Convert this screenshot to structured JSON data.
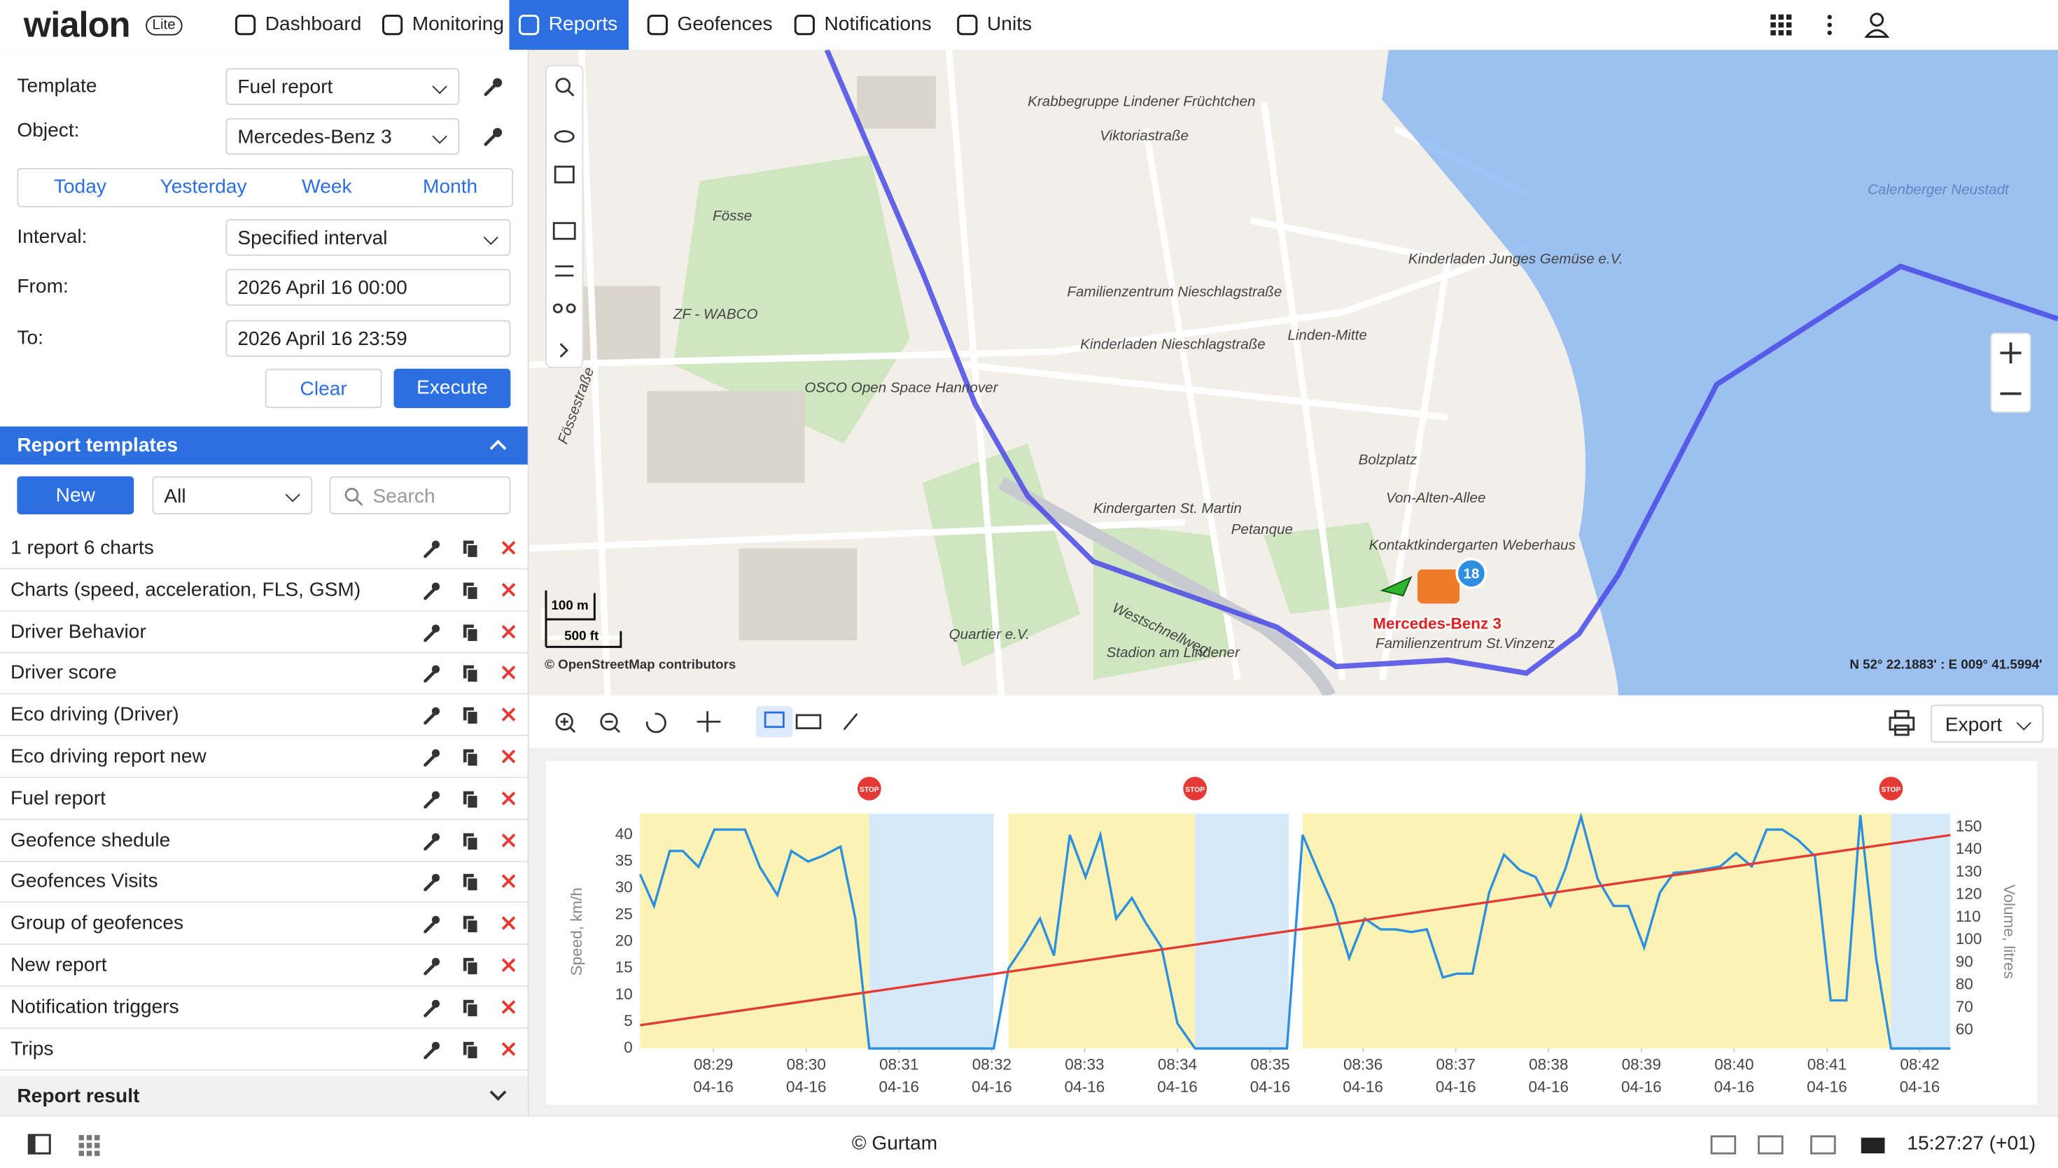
{
  "header": {
    "logo": "wialon",
    "logo_badge": "Lite",
    "nav": [
      "Dashboard",
      "Monitoring",
      "Reports",
      "Geofences",
      "Notifications",
      "Units"
    ],
    "active_nav": 2
  },
  "report_form": {
    "template_label": "Template",
    "template_value": "Fuel report",
    "object_label": "Object:",
    "object_value": "Mercedes-Benz 3",
    "periods": [
      "Today",
      "Yesterday",
      "Week",
      "Month"
    ],
    "interval_label": "Interval:",
    "interval_value": "Specified interval",
    "from_label": "From:",
    "from_value": "2026 April 16 00:00",
    "to_label": "To:",
    "to_value": "2026 April 16 23:59",
    "clear": "Clear",
    "execute": "Execute"
  },
  "templates": {
    "title": "Report templates",
    "new": "New",
    "filter": "All",
    "search_placeholder": "Search",
    "items": [
      "1 report 6 charts",
      "Charts (speed, acceleration, FLS, GSM)",
      "Driver Behavior",
      "Driver score",
      "Eco driving (Driver)",
      "Eco driving report new",
      "Fuel report",
      "Geofence shedule",
      "Geofences Visits",
      "Group of geofences",
      "New report",
      "Notification triggers",
      "Trips"
    ]
  },
  "report_result": "Report result",
  "map": {
    "labels": [
      "Krabbegruppe Lindener Früchtchen",
      "Viktoriastraße",
      "Familienzentrum Nieschlagstraße",
      "Kinderladen Nieschlagstraße",
      "Linden-Mitte",
      "Kinderladen Junges Gemüse e.V.",
      "ZF - WABCO",
      "OSCO Open Space Hannover",
      "Kindergarten St. Martin",
      "Petanque",
      "Bolzplatz",
      "Kontaktkindergarten Weberhaus",
      "Westschnellweg",
      "Quartier e.V.",
      "Stadion am Lindener",
      "Familienzentrum St.Vinzenz",
      "Fössestraße",
      "Fösse",
      "Calenberger Neustadt",
      "Von-Alten-Allee"
    ],
    "scale_m": "100 m",
    "scale_ft": "500 ft",
    "attribution": "© OpenStreetMap contributors",
    "coordinates": "N 52° 22.1883' : E 009° 41.5994'",
    "unit_name": "Mercedes-Benz 3",
    "unit_badge": "18"
  },
  "chart_toolbar": {
    "export": "Export"
  },
  "chart_data": {
    "type": "line",
    "ylabel": "Speed, km/h",
    "y2label": "Volume, litres",
    "xlim": [
      28.2,
      42.33
    ],
    "ylim": [
      0,
      44
    ],
    "y2lim": [
      52,
      156
    ],
    "xticks": [
      {
        "value": 29,
        "label": "08:29",
        "date": "04-16"
      },
      {
        "value": 30,
        "label": "08:30",
        "date": "04-16"
      },
      {
        "value": 31,
        "label": "08:31",
        "date": "04-16"
      },
      {
        "value": 32,
        "label": "08:32",
        "date": "04-16"
      },
      {
        "value": 33,
        "label": "08:33",
        "date": "04-16"
      },
      {
        "value": 34,
        "label": "08:34",
        "date": "04-16"
      },
      {
        "value": 35,
        "label": "08:35",
        "date": "04-16"
      },
      {
        "value": 36,
        "label": "08:36",
        "date": "04-16"
      },
      {
        "value": 37,
        "label": "08:37",
        "date": "04-16"
      },
      {
        "value": 38,
        "label": "08:38",
        "date": "04-16"
      },
      {
        "value": 39,
        "label": "08:39",
        "date": "04-16"
      },
      {
        "value": 40,
        "label": "08:40",
        "date": "04-16"
      },
      {
        "value": 41,
        "label": "08:41",
        "date": "04-16"
      },
      {
        "value": 42,
        "label": "08:42",
        "date": "04-16"
      }
    ],
    "yticks": [
      0,
      5,
      10,
      15,
      20,
      25,
      30,
      35,
      40
    ],
    "y2ticks": [
      60,
      70,
      80,
      90,
      100,
      110,
      120,
      130,
      140,
      150
    ],
    "intervals": [
      {
        "color": "#faf3b4",
        "x": [
          28.21,
          30.68
        ]
      },
      {
        "color": "#d6e9fa",
        "x": [
          30.68,
          32.02
        ]
      },
      {
        "color": "#faf3b4",
        "x": [
          32.18,
          34.19
        ]
      },
      {
        "color": "#d6e9fa",
        "x": [
          34.19,
          35.2
        ]
      },
      {
        "color": "#faf3b4",
        "x": [
          35.35,
          41.69
        ]
      },
      {
        "color": "#d6e9fa",
        "x": [
          41.69,
          42.33
        ]
      }
    ],
    "stop_markers": {
      "label": "STOP",
      "x": [
        30.68,
        34.19,
        41.69
      ]
    },
    "series": [
      {
        "color": "#2d8fe0",
        "x": [
          28.21,
          28.36,
          28.53,
          28.67,
          28.84,
          29.01,
          29.17,
          29.34,
          29.5,
          29.69,
          29.84,
          30.02,
          30.17,
          30.37,
          30.53,
          30.68,
          32.02,
          32.18,
          32.35,
          32.52,
          32.67,
          32.84,
          33.01,
          33.17,
          33.34,
          33.51,
          33.65,
          33.83,
          34.0,
          34.19,
          35.18,
          35.35,
          35.53,
          35.68,
          35.85,
          36.02,
          36.19,
          36.35,
          36.52,
          36.69,
          36.86,
          37.01,
          37.18,
          37.36,
          37.52,
          37.69,
          37.86,
          38.02,
          38.18,
          38.35,
          38.53,
          38.7,
          38.86,
          39.03,
          39.2,
          39.35,
          39.52,
          39.69,
          39.85,
          40.02,
          40.19,
          40.35,
          40.52,
          40.69,
          40.87,
          41.04,
          41.21,
          41.36,
          41.53,
          41.69,
          42.33
        ],
        "values": [
          32.6,
          26.7,
          37,
          37,
          34,
          41,
          41,
          41,
          34,
          28.7,
          37,
          35,
          36,
          37.8,
          24.3,
          0,
          0,
          15,
          19.4,
          24.3,
          17.4,
          40,
          32.1,
          40,
          24.3,
          28.2,
          23.8,
          18.9,
          4.7,
          0,
          0,
          40,
          32.6,
          26.7,
          16.9,
          24.3,
          22.3,
          22.3,
          21.8,
          22.3,
          13.3,
          14,
          14,
          29.2,
          36.3,
          33.4,
          32.1,
          26.7,
          33.6,
          43.4,
          31.7,
          26.7,
          26.7,
          18.9,
          29.2,
          32.9,
          33.1,
          33.6,
          34.1,
          36.6,
          34.1,
          41,
          41,
          39,
          36,
          9,
          9,
          43.7,
          16.9,
          0,
          0
        ]
      },
      {
        "color": "#e53935",
        "axis": "y2",
        "x": [
          28.21,
          42.33
        ],
        "values": [
          62.3,
          146.5
        ]
      }
    ]
  },
  "footer": {
    "copyright": "© Gurtam",
    "time": "15:27:27 (+01)"
  }
}
